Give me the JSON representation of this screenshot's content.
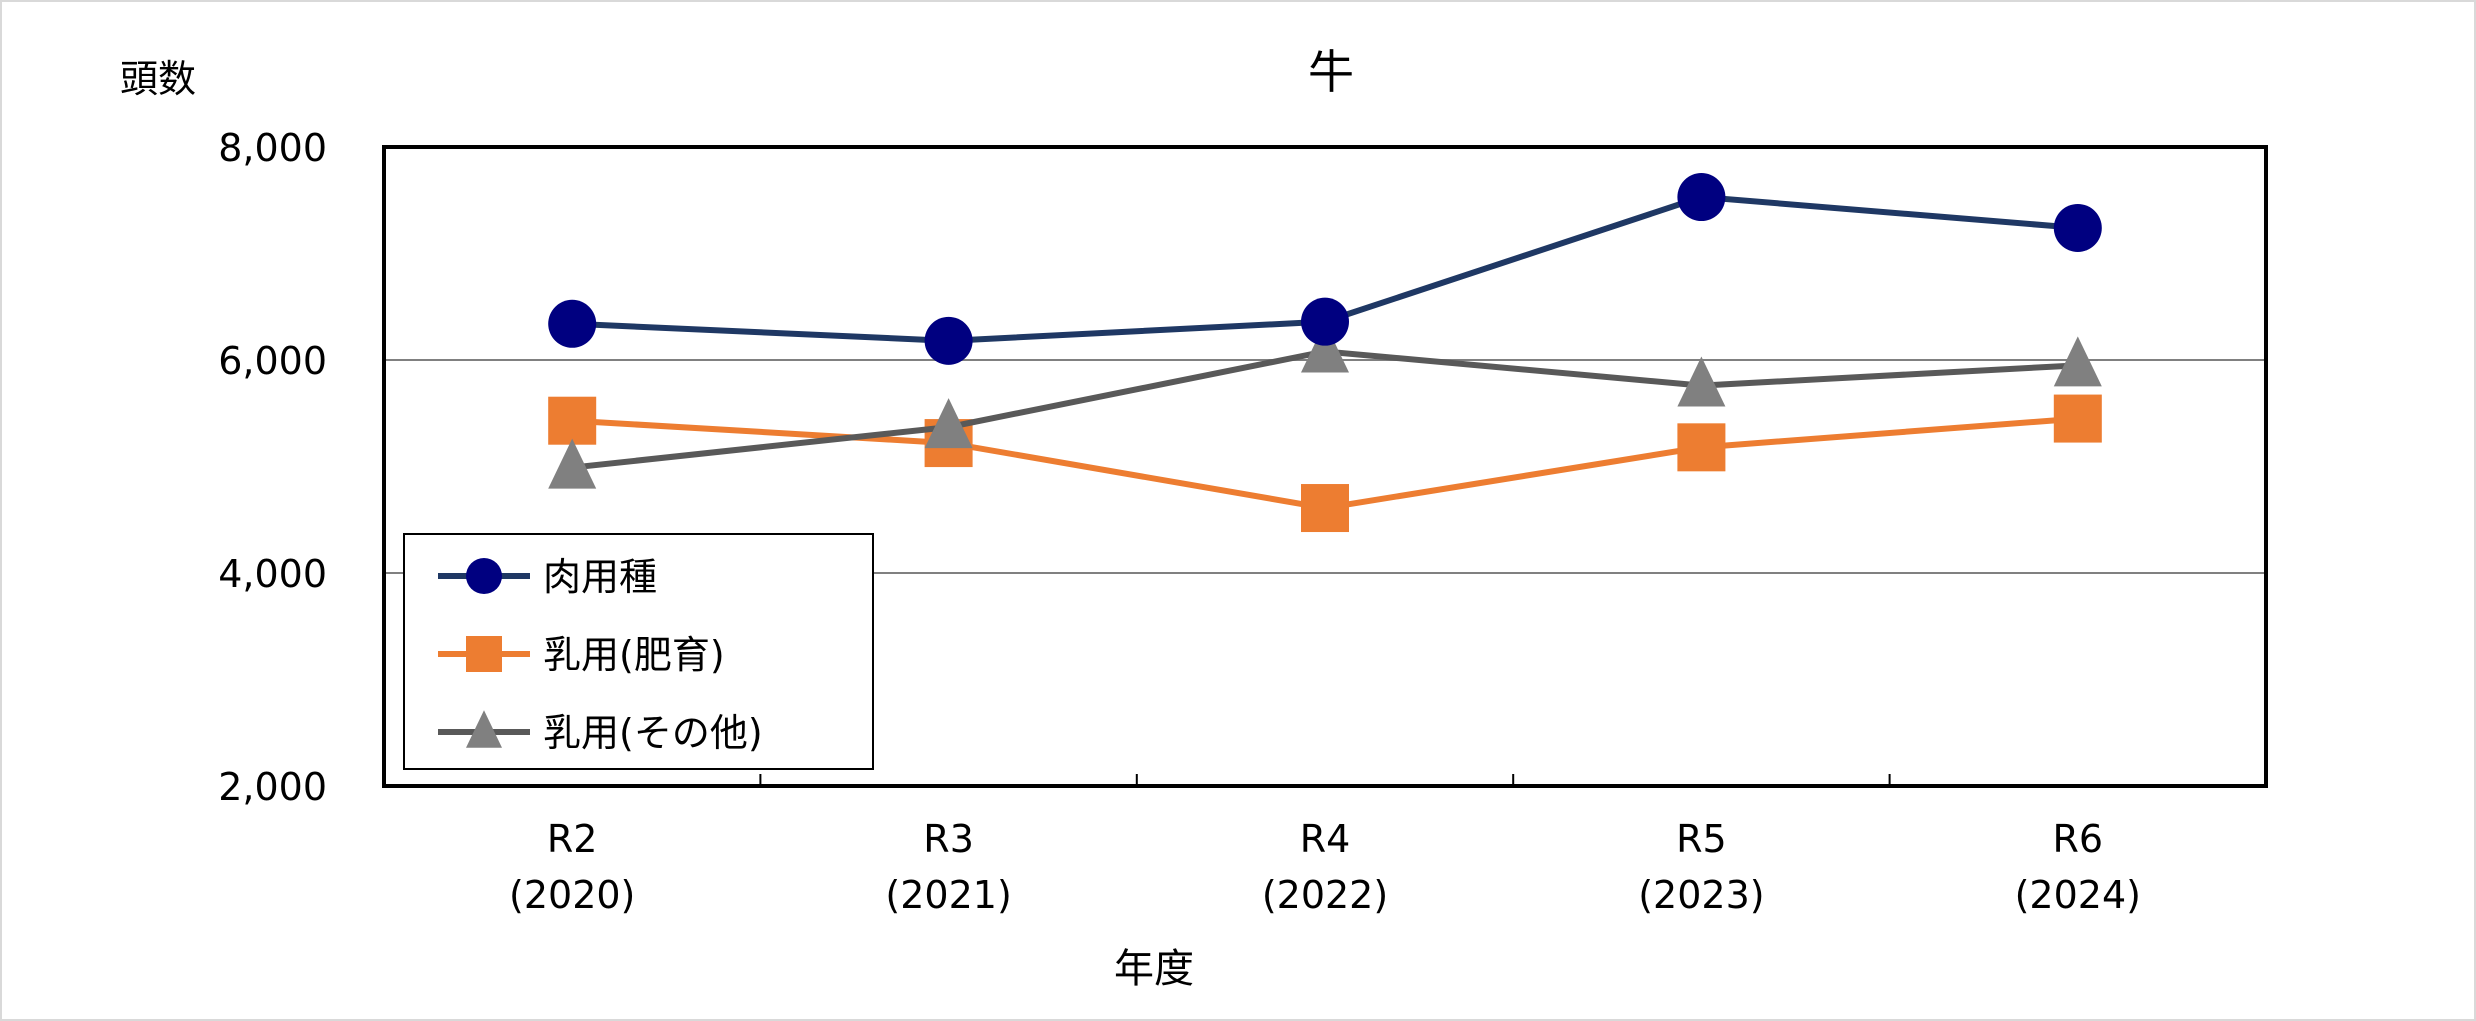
{
  "chart_data": {
    "type": "line",
    "title": "牛",
    "ylabel": "頭数",
    "xlabel": "年度",
    "ylim": [
      2000,
      8000
    ],
    "yticks": [
      "2,000",
      "4,000",
      "6,000",
      "8,000"
    ],
    "ytick_values": [
      2000,
      4000,
      6000,
      8000
    ],
    "grid": true,
    "legend_position": "bottom-left",
    "categories": [
      {
        "line1": "R2",
        "line2": "(2020)"
      },
      {
        "line1": "R3",
        "line2": "(2021)"
      },
      {
        "line1": "R4",
        "line2": "(2022)"
      },
      {
        "line1": "R5",
        "line2": "(2023)"
      },
      {
        "line1": "R6",
        "line2": "(2024)"
      }
    ],
    "series": [
      {
        "name": "肉用種",
        "marker": "circle",
        "line_color": "#1f3864",
        "marker_color": "#000080",
        "values": [
          6340,
          6180,
          6360,
          7530,
          7240
        ]
      },
      {
        "name": "乳用(肥育)",
        "marker": "square",
        "line_color": "#ed7d31",
        "marker_color": "#ed7d31",
        "values": [
          5430,
          5220,
          4610,
          5180,
          5450
        ]
      },
      {
        "name": "乳用(その他)",
        "marker": "triangle",
        "line_color": "#595959",
        "marker_color": "#808080",
        "values": [
          4990,
          5370,
          6080,
          5760,
          5950
        ]
      }
    ]
  }
}
